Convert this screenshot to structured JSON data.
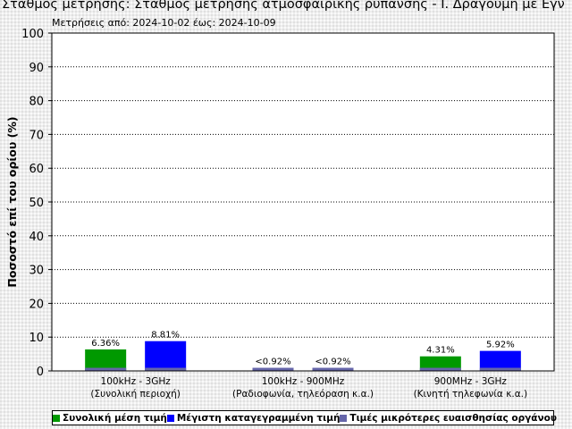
{
  "title": "Σταθμός μέτρησης: Σταθμός μέτρησης ατμοσφαιρικής ρύπανσης - Ι. Δραγούμη με Εγν",
  "subtitle": "Μετρήσεις από: 2024-10-02 έως: 2024-10-09",
  "colors": {
    "green": "#009900",
    "blue": "#0000ff",
    "slate": "#6666aa"
  },
  "chart_data": {
    "type": "bar",
    "ylabel": "Ποσοστό επί του ορίου (%)",
    "ylim": [
      0,
      100
    ],
    "yticks": [
      0,
      10,
      20,
      30,
      40,
      50,
      60,
      70,
      80,
      90,
      100
    ],
    "grid": true,
    "categories": [
      {
        "line1": "100kHz - 3GHz",
        "line2": "(Συνολική περιοχή)"
      },
      {
        "line1": "100kHz - 900MHz",
        "line2": "(Ραδιοφωνία, τηλεόραση κ.α.)"
      },
      {
        "line1": "900MHz - 3GHz",
        "line2": "(Κινητή τηλεφωνία κ.α.)"
      }
    ],
    "series": [
      {
        "name": "Συνολική μέση τιμή",
        "color": "#009900",
        "values": [
          6.36,
          0.92,
          4.31
        ],
        "labels": [
          "6.36%",
          "<0.92%",
          "4.31%"
        ]
      },
      {
        "name": "Μέγιστη καταγεγραμμένη τιμή",
        "color": "#0000ff",
        "values": [
          8.81,
          0.92,
          5.92
        ],
        "labels": [
          "8.81%",
          "<0.92%",
          "5.92%"
        ]
      },
      {
        "name": "Τιμές μικρότερες ευαισθησίας οργάνου",
        "color": "#6666aa",
        "values": [
          0.92,
          0.92,
          0.92
        ]
      }
    ],
    "legend_position": "bottom"
  }
}
